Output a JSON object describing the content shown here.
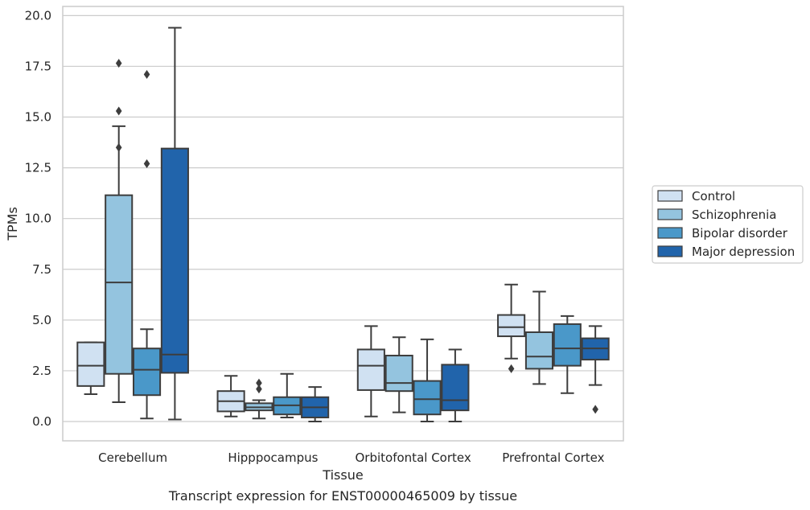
{
  "chart_data": {
    "type": "box",
    "title": "Transcript expression for ENST00000465009 by tissue",
    "xlabel": "Tissue",
    "ylabel": "TPMs",
    "ylim": [
      -0.95,
      20.45
    ],
    "yticks": [
      "0.0",
      "2.5",
      "5.0",
      "7.5",
      "10.0",
      "12.5",
      "15.0",
      "17.5",
      "20.0"
    ],
    "ytick_values": [
      0,
      2.5,
      5,
      7.5,
      10,
      12.5,
      15,
      17.5,
      20
    ],
    "grid": true,
    "legend_position": "right",
    "categories": [
      "Cerebellum",
      "Hipppocampus",
      "Orbitofontal Cortex",
      "Prefrontal Cortex"
    ],
    "series": [
      {
        "name": "Control",
        "color": "#d0e1f2",
        "boxes": [
          {
            "whislo": 1.35,
            "q1": 1.75,
            "med": 2.75,
            "q3": 3.9,
            "whishi": 3.9,
            "fliers": []
          },
          {
            "whislo": 0.25,
            "q1": 0.5,
            "med": 1.0,
            "q3": 1.5,
            "whishi": 2.25,
            "fliers": []
          },
          {
            "whislo": 0.25,
            "q1": 1.55,
            "med": 2.75,
            "q3": 3.55,
            "whishi": 4.7,
            "fliers": []
          },
          {
            "whislo": 3.1,
            "q1": 4.2,
            "med": 4.65,
            "q3": 5.25,
            "whishi": 6.75,
            "fliers": [
              2.6
            ]
          }
        ]
      },
      {
        "name": "Schizophrenia",
        "color": "#94c4df",
        "boxes": [
          {
            "whislo": 0.95,
            "q1": 2.35,
            "med": 6.85,
            "q3": 11.15,
            "whishi": 14.55,
            "fliers": [
              13.5,
              15.3,
              17.65
            ]
          },
          {
            "whislo": 0.15,
            "q1": 0.55,
            "med": 0.7,
            "q3": 0.9,
            "whishi": 1.05,
            "fliers": [
              1.6,
              1.9
            ]
          },
          {
            "whislo": 0.45,
            "q1": 1.5,
            "med": 1.9,
            "q3": 3.25,
            "whishi": 4.15,
            "fliers": []
          },
          {
            "whislo": 1.85,
            "q1": 2.6,
            "med": 3.2,
            "q3": 4.4,
            "whishi": 6.4,
            "fliers": []
          }
        ]
      },
      {
        "name": "Bipolar disorder",
        "color": "#4a98c9",
        "boxes": [
          {
            "whislo": 0.15,
            "q1": 1.3,
            "med": 2.55,
            "q3": 3.6,
            "whishi": 4.55,
            "fliers": [
              12.7,
              17.1
            ]
          },
          {
            "whislo": 0.2,
            "q1": 0.35,
            "med": 0.8,
            "q3": 1.2,
            "whishi": 2.35,
            "fliers": []
          },
          {
            "whislo": 0.0,
            "q1": 0.35,
            "med": 1.1,
            "q3": 2.0,
            "whishi": 4.05,
            "fliers": []
          },
          {
            "whislo": 1.4,
            "q1": 2.75,
            "med": 3.6,
            "q3": 4.8,
            "whishi": 5.2,
            "fliers": []
          }
        ]
      },
      {
        "name": "Major depression",
        "color": "#2164ab",
        "boxes": [
          {
            "whislo": 0.1,
            "q1": 2.4,
            "med": 3.3,
            "q3": 13.45,
            "whishi": 19.4,
            "fliers": []
          },
          {
            "whislo": 0.0,
            "q1": 0.2,
            "med": 0.7,
            "q3": 1.2,
            "whishi": 1.7,
            "fliers": []
          },
          {
            "whislo": 0.0,
            "q1": 0.55,
            "med": 1.05,
            "q3": 2.8,
            "whishi": 3.55,
            "fliers": []
          },
          {
            "whislo": 1.8,
            "q1": 3.05,
            "med": 3.6,
            "q3": 4.1,
            "whishi": 4.7,
            "fliers": [
              0.6
            ]
          }
        ]
      }
    ]
  }
}
